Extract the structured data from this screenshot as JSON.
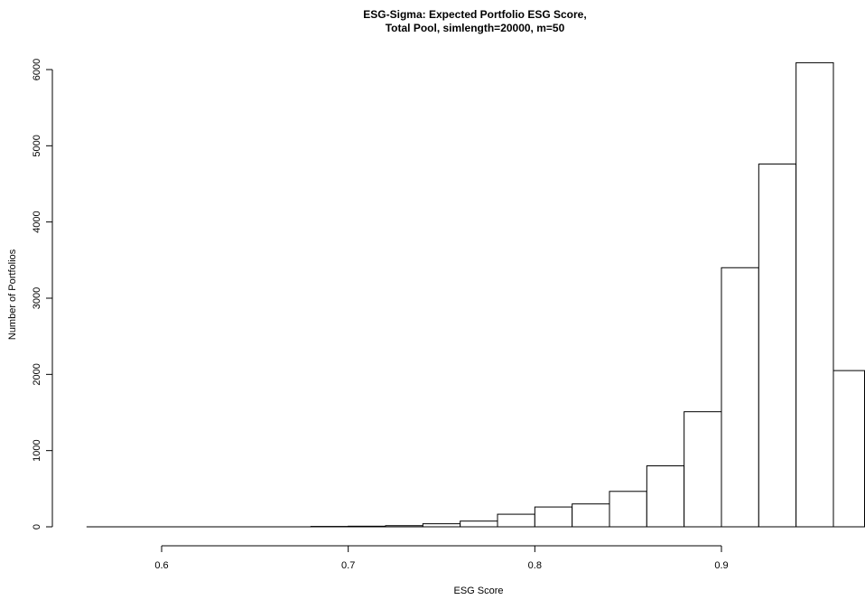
{
  "chart_data": {
    "type": "bar",
    "subtype": "histogram",
    "title_lines": [
      "ESG-Sigma: Expected Portfolio ESG Score,",
      "Total Pool, simlength=20000, m=50"
    ],
    "xlabel": "ESG Score",
    "ylabel": "Number of Portfolios",
    "xlim": [
      0.56,
      0.976
    ],
    "ylim": [
      0,
      6100
    ],
    "x_ticks": [
      0.6,
      0.7,
      0.8,
      0.9
    ],
    "x_tick_labels": [
      "0.6",
      "0.7",
      "0.8",
      "0.9"
    ],
    "y_ticks": [
      0,
      1000,
      2000,
      3000,
      4000,
      5000,
      6000
    ],
    "y_tick_labels": [
      "0",
      "1000",
      "2000",
      "3000",
      "4000",
      "5000",
      "6000"
    ],
    "bins": [
      {
        "x0": 0.56,
        "x1": 0.58,
        "count": 0
      },
      {
        "x0": 0.58,
        "x1": 0.6,
        "count": 0
      },
      {
        "x0": 0.6,
        "x1": 0.62,
        "count": 0
      },
      {
        "x0": 0.62,
        "x1": 0.64,
        "count": 0
      },
      {
        "x0": 0.64,
        "x1": 0.66,
        "count": 0
      },
      {
        "x0": 0.66,
        "x1": 0.68,
        "count": 0
      },
      {
        "x0": 0.68,
        "x1": 0.7,
        "count": 5
      },
      {
        "x0": 0.7,
        "x1": 0.72,
        "count": 8
      },
      {
        "x0": 0.72,
        "x1": 0.74,
        "count": 15
      },
      {
        "x0": 0.74,
        "x1": 0.76,
        "count": 40
      },
      {
        "x0": 0.76,
        "x1": 0.78,
        "count": 75
      },
      {
        "x0": 0.78,
        "x1": 0.8,
        "count": 165
      },
      {
        "x0": 0.8,
        "x1": 0.82,
        "count": 260
      },
      {
        "x0": 0.82,
        "x1": 0.84,
        "count": 300
      },
      {
        "x0": 0.84,
        "x1": 0.86,
        "count": 465
      },
      {
        "x0": 0.86,
        "x1": 0.88,
        "count": 800
      },
      {
        "x0": 0.88,
        "x1": 0.9,
        "count": 1510
      },
      {
        "x0": 0.9,
        "x1": 0.92,
        "count": 3400
      },
      {
        "x0": 0.92,
        "x1": 0.94,
        "count": 4760
      },
      {
        "x0": 0.94,
        "x1": 0.96,
        "count": 6090
      },
      {
        "x0": 0.96,
        "x1": 0.98,
        "count": 2050
      }
    ],
    "bar_fill": "#ffffff",
    "bar_stroke": "#000000",
    "grid": false,
    "legend": "none"
  }
}
